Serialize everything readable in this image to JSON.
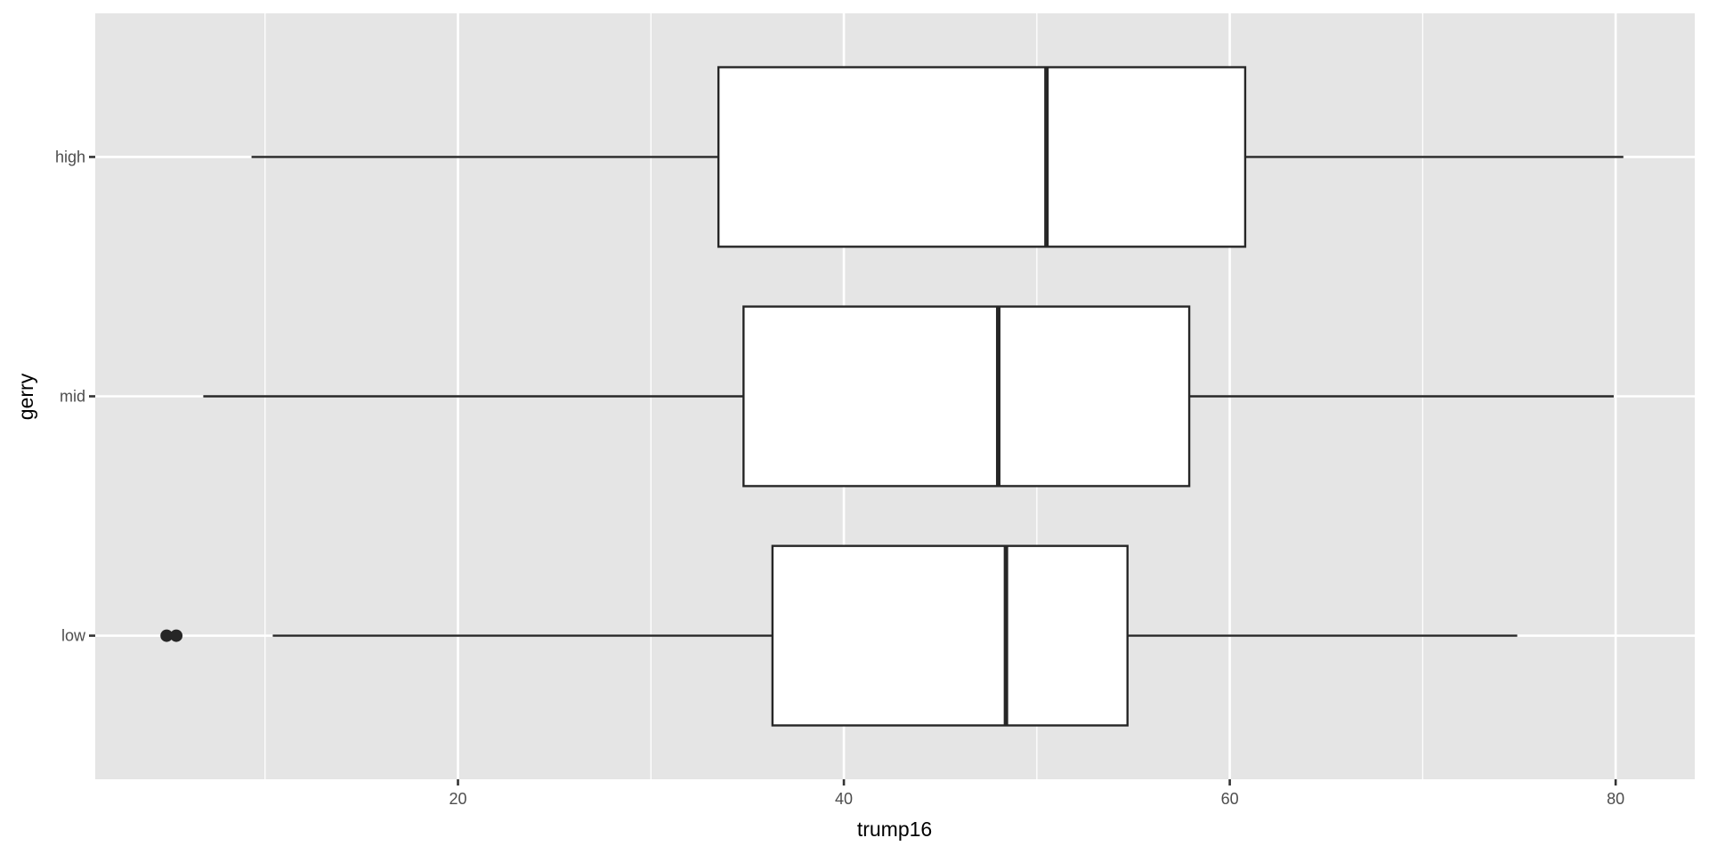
{
  "chart_data": {
    "type": "boxplot",
    "orientation": "horizontal",
    "xlabel": "trump16",
    "ylabel": "gerry",
    "xlim": [
      1.2,
      84.1
    ],
    "x_ticks": [
      20,
      40,
      60,
      80
    ],
    "x_tick_labels": [
      "20",
      "40",
      "60",
      "80"
    ],
    "x_minor_gridlines": [
      10,
      30,
      50,
      70
    ],
    "grid": true,
    "categories": [
      "low",
      "mid",
      "high"
    ],
    "boxes": [
      {
        "category": "low",
        "whisker_low": 10.4,
        "q1": 36.3,
        "median": 48.4,
        "q3": 54.7,
        "whisker_high": 74.9,
        "outliers": [
          4.9,
          5.4
        ]
      },
      {
        "category": "mid",
        "whisker_low": 6.8,
        "q1": 34.8,
        "median": 48.0,
        "q3": 57.9,
        "whisker_high": 79.9,
        "outliers": []
      },
      {
        "category": "high",
        "whisker_low": 9.3,
        "q1": 33.5,
        "median": 50.5,
        "q3": 60.8,
        "whisker_high": 80.4,
        "outliers": []
      }
    ],
    "colors": {
      "panel": "#e5e5e5",
      "grid": "#ffffff",
      "box_fill": "#ffffff",
      "box_line": "#262626",
      "text": "#4d4d4d"
    }
  }
}
